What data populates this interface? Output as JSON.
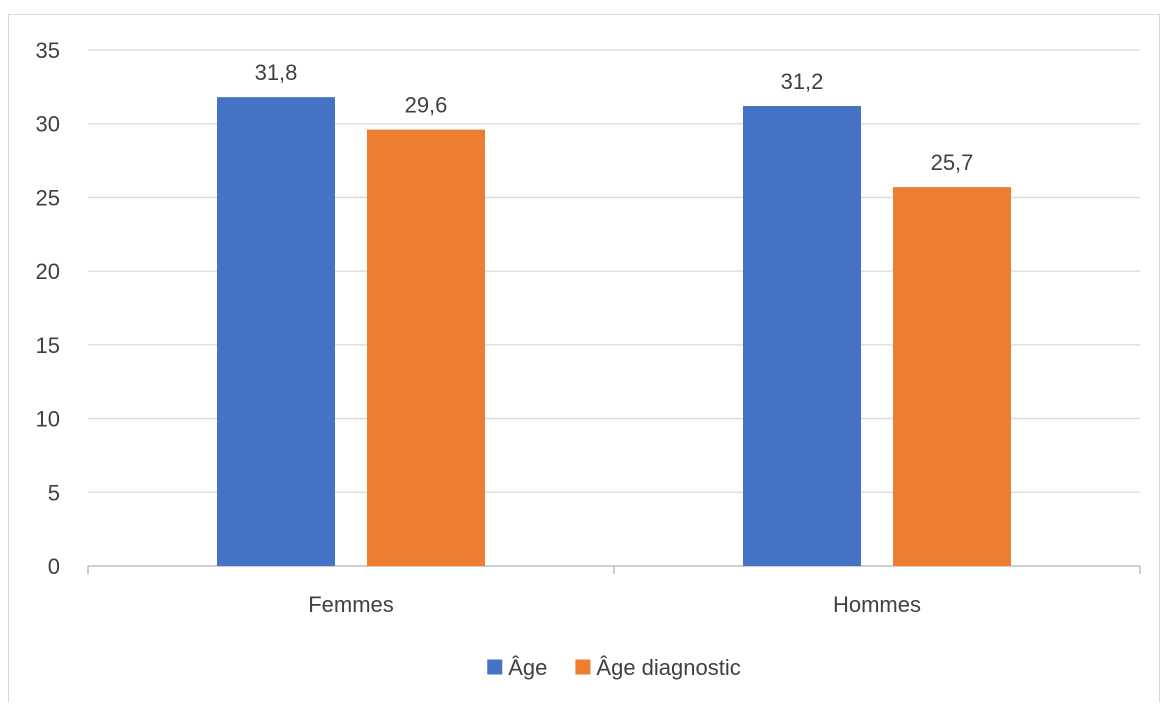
{
  "chart_data": {
    "type": "bar",
    "categories": [
      "Femmes",
      "Hommes"
    ],
    "series": [
      {
        "name": "Âge",
        "values": [
          31.8,
          31.2
        ],
        "labels": [
          "31,8",
          "31,2"
        ],
        "color": "#4472c4"
      },
      {
        "name": "Âge diagnostic",
        "values": [
          29.6,
          25.7
        ],
        "labels": [
          "29,6",
          "25,7"
        ],
        "color": "#ed7d31"
      }
    ],
    "ylim": [
      0,
      35
    ],
    "yticks": [
      0,
      5,
      10,
      15,
      20,
      25,
      30,
      35
    ],
    "grid": true,
    "legend_position": "bottom",
    "colors": {
      "grid": "#d9d9d9",
      "axis": "#bfbfbf",
      "text": "#404040"
    }
  }
}
